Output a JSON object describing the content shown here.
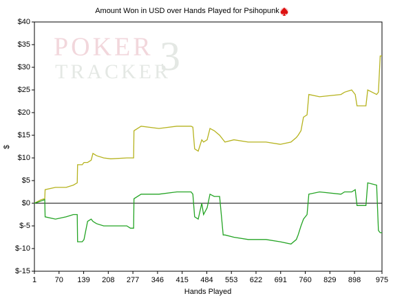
{
  "chart_data": {
    "type": "line",
    "title": "Amount Won in USD over Hands Played for Psihopunk",
    "x_label": "Hands Played",
    "y_label": "$",
    "watermark": {
      "top": "POKER",
      "bottom": "TRACKER",
      "badge": "3"
    },
    "x": [
      1,
      20,
      30,
      31,
      60,
      90,
      110,
      121,
      122,
      135,
      140,
      150,
      160,
      165,
      175,
      195,
      215,
      260,
      270,
      279,
      280,
      300,
      350,
      400,
      440,
      445,
      450,
      460,
      470,
      475,
      485,
      493,
      505,
      520,
      530,
      535,
      560,
      600,
      650,
      690,
      720,
      735,
      740,
      748,
      755,
      765,
      770,
      800,
      860,
      870,
      890,
      900,
      905,
      930,
      935,
      960,
      965,
      970,
      975
    ],
    "series": [
      {
        "color": "#b5b21c",
        "values": [
          0,
          0.8,
          1,
          3,
          3.5,
          3.5,
          4,
          4.5,
          8.5,
          8.5,
          9,
          9,
          9.5,
          11,
          10.5,
          10,
          9.8,
          10,
          10,
          10,
          16,
          17,
          16.5,
          17,
          17,
          16.8,
          12,
          11.5,
          14,
          13.5,
          14,
          16.5,
          16,
          15,
          14,
          13.5,
          14,
          13.5,
          13.5,
          13,
          13.5,
          14.5,
          15,
          16,
          19,
          19.5,
          24,
          23.5,
          24,
          24.5,
          25,
          24,
          21.5,
          21.5,
          25,
          24,
          24.5,
          32.5,
          32.5
        ]
      },
      {
        "color": "#22a322",
        "values": [
          0,
          0.5,
          0.8,
          -3,
          -3.5,
          -3,
          -2.5,
          -2.5,
          -8.5,
          -8.5,
          -8,
          -4,
          -3.5,
          -4,
          -4.5,
          -5,
          -5,
          -5,
          -5.5,
          -5.5,
          1,
          2,
          2,
          2.5,
          2.5,
          2,
          -3,
          -3.5,
          0,
          -2.5,
          -1,
          2,
          1.5,
          1.5,
          -7,
          -7,
          -7.5,
          -8,
          -8,
          -8.5,
          -9,
          -8,
          -7,
          -5,
          -3.5,
          -2.5,
          2,
          2.5,
          2,
          2.5,
          2.5,
          3,
          -0.5,
          -0.5,
          4.5,
          4,
          -6,
          -6.5,
          -6.5
        ]
      }
    ],
    "xlim": [
      1,
      975
    ],
    "xticks": [
      1,
      70,
      139,
      208,
      277,
      346,
      415,
      484,
      553,
      622,
      691,
      760,
      829,
      898,
      975
    ],
    "ylim": [
      -15,
      40
    ],
    "yticks": [
      {
        "value": 40,
        "label": "$40"
      },
      {
        "value": 35,
        "label": "$35"
      },
      {
        "value": 30,
        "label": "$30"
      },
      {
        "value": 25,
        "label": "$25"
      },
      {
        "value": 20,
        "label": "$20"
      },
      {
        "value": 15,
        "label": "$15"
      },
      {
        "value": 10,
        "label": "$10"
      },
      {
        "value": 5,
        "label": "$5"
      },
      {
        "value": 0,
        "label": "$0"
      },
      {
        "value": -5,
        "label": "$-5"
      },
      {
        "value": -10,
        "label": "$-10"
      },
      {
        "value": -15,
        "label": "$-15"
      }
    ],
    "grid": false
  }
}
